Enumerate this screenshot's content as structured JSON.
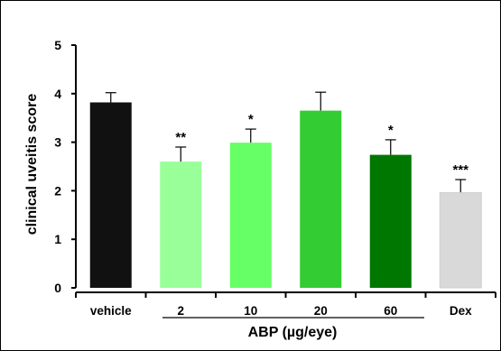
{
  "chart_data": {
    "type": "bar",
    "ylabel": "clinical uveitis score",
    "xlabel": "",
    "ylim": [
      0,
      5
    ],
    "yticks": [
      0,
      1,
      2,
      3,
      4,
      5
    ],
    "group_label": "ABP (µg/eye)",
    "categories": [
      "vehicle",
      "2",
      "10",
      "20",
      "60",
      "Dex"
    ],
    "values": [
      3.82,
      2.6,
      2.99,
      3.65,
      2.74,
      1.96
    ],
    "errors": [
      0.2,
      0.3,
      0.28,
      0.38,
      0.31,
      0.27
    ],
    "significance": [
      "",
      "**",
      "*",
      "",
      "*",
      "***"
    ],
    "colors": [
      "#111111",
      "#99ff99",
      "#66ff66",
      "#33cc33",
      "#007700",
      "#d9d9d9"
    ],
    "grid": false
  }
}
